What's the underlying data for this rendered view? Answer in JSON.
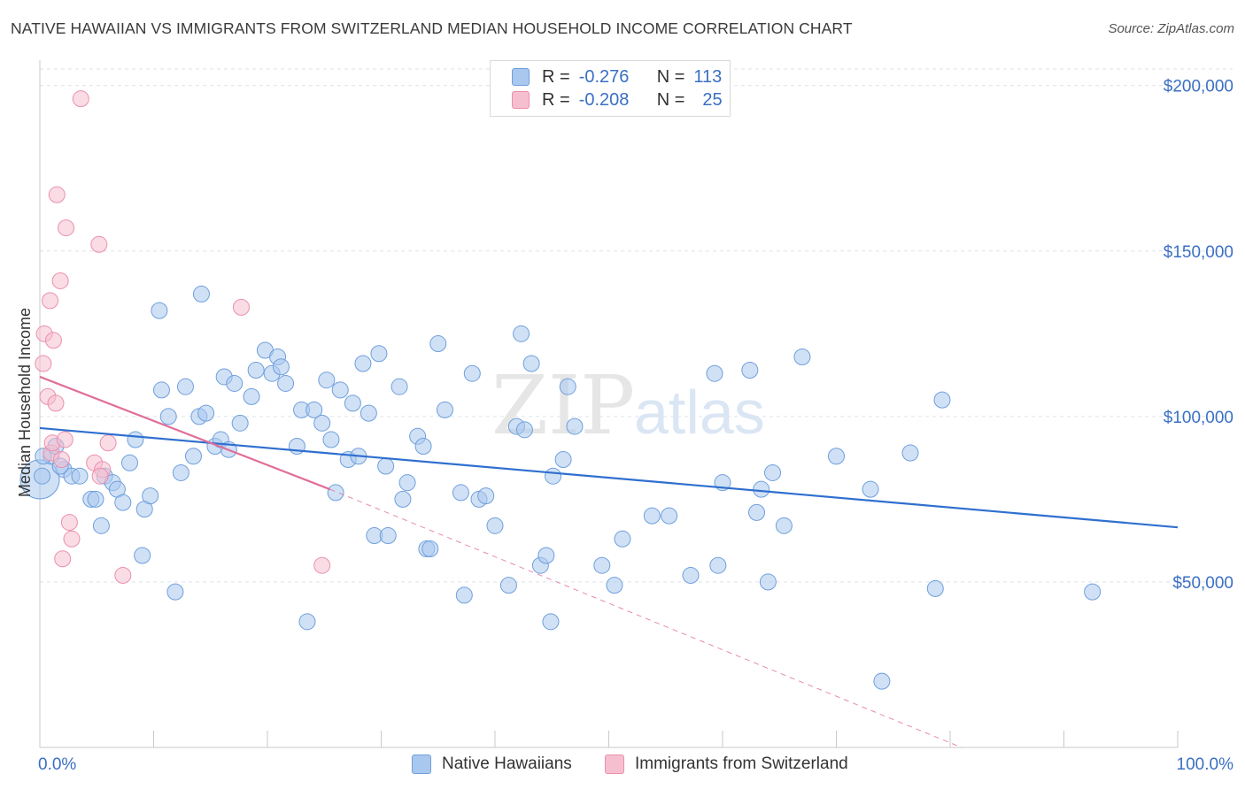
{
  "title": "NATIVE HAWAIIAN VS IMMIGRANTS FROM SWITZERLAND MEDIAN HOUSEHOLD INCOME CORRELATION CHART",
  "source": "Source: ZipAtlas.com",
  "watermark": {
    "part1": "ZIP",
    "part2": "atlas"
  },
  "stats_legend": {
    "rows": [
      {
        "r_label": "R =",
        "r_value": "-0.276",
        "n_label": "N =",
        "n_value": "113"
      },
      {
        "r_label": "R =",
        "r_value": "-0.208",
        "n_label": "N =",
        "n_value": "25"
      }
    ]
  },
  "bottom_legend": [
    {
      "label": "Native Hawaiians"
    },
    {
      "label": "Immigrants from Switzerland"
    }
  ],
  "colors": {
    "blue_fill": "#a9c8ef",
    "blue_stroke": "#6f9fdc",
    "blue_line": "#2f6fcf",
    "pink_fill": "#f6bfd0",
    "pink_stroke": "#eb8fad",
    "pink_line": "#e06f9a",
    "axis_text": "#3a6fc4",
    "grid": "#dde2ea"
  },
  "chart_data": {
    "type": "scatter",
    "xlabel": "",
    "ylabel": "Median Household Income",
    "x_tick_labels": [
      "0.0%",
      "100.0%"
    ],
    "y_tick_labels": [
      "$50,000",
      "$100,000",
      "$150,000",
      "$200,000"
    ],
    "xlim": [
      0,
      100
    ],
    "ylim": [
      0,
      205000
    ],
    "y_ticks": [
      50000,
      100000,
      150000,
      200000
    ],
    "x_minor_ticks": [
      0,
      10,
      20,
      30,
      40,
      50,
      60,
      70,
      80,
      90,
      100
    ],
    "grid": "horizontal dashed",
    "series": [
      {
        "name": "Native Hawaiians",
        "color": "blue",
        "points": [
          [
            0.2,
            82000
          ],
          [
            1.0,
            88000
          ],
          [
            1.4,
            91000
          ],
          [
            2.1,
            84000
          ],
          [
            2.8,
            82000
          ],
          [
            3.5,
            82000
          ],
          [
            4.5,
            75000
          ],
          [
            4.9,
            75000
          ],
          [
            5.4,
            67000
          ],
          [
            5.7,
            82000
          ],
          [
            6.4,
            80000
          ],
          [
            6.8,
            78000
          ],
          [
            7.3,
            74000
          ],
          [
            7.9,
            86000
          ],
          [
            8.4,
            93000
          ],
          [
            9.0,
            58000
          ],
          [
            9.2,
            72000
          ],
          [
            9.7,
            76000
          ],
          [
            10.5,
            132000
          ],
          [
            10.7,
            108000
          ],
          [
            11.3,
            100000
          ],
          [
            11.9,
            47000
          ],
          [
            12.4,
            83000
          ],
          [
            12.8,
            109000
          ],
          [
            13.5,
            88000
          ],
          [
            14.0,
            100000
          ],
          [
            14.6,
            101000
          ],
          [
            14.2,
            137000
          ],
          [
            15.4,
            91000
          ],
          [
            15.9,
            93000
          ],
          [
            16.2,
            112000
          ],
          [
            16.6,
            90000
          ],
          [
            17.1,
            110000
          ],
          [
            17.6,
            98000
          ],
          [
            18.6,
            106000
          ],
          [
            19.0,
            114000
          ],
          [
            19.8,
            120000
          ],
          [
            20.4,
            113000
          ],
          [
            20.9,
            118000
          ],
          [
            21.2,
            115000
          ],
          [
            21.6,
            110000
          ],
          [
            22.6,
            91000
          ],
          [
            23.0,
            102000
          ],
          [
            23.5,
            38000
          ],
          [
            24.1,
            102000
          ],
          [
            24.8,
            98000
          ],
          [
            25.2,
            111000
          ],
          [
            25.6,
            93000
          ],
          [
            26.0,
            77000
          ],
          [
            26.4,
            108000
          ],
          [
            27.1,
            87000
          ],
          [
            27.5,
            104000
          ],
          [
            28.0,
            88000
          ],
          [
            28.4,
            116000
          ],
          [
            28.9,
            101000
          ],
          [
            29.4,
            64000
          ],
          [
            29.8,
            119000
          ],
          [
            30.4,
            85000
          ],
          [
            30.6,
            64000
          ],
          [
            31.6,
            109000
          ],
          [
            31.9,
            75000
          ],
          [
            32.3,
            80000
          ],
          [
            33.2,
            94000
          ],
          [
            33.7,
            91000
          ],
          [
            34.0,
            60000
          ],
          [
            34.3,
            60000
          ],
          [
            35.0,
            122000
          ],
          [
            35.6,
            102000
          ],
          [
            37.0,
            77000
          ],
          [
            37.3,
            46000
          ],
          [
            38.0,
            113000
          ],
          [
            38.6,
            75000
          ],
          [
            39.2,
            76000
          ],
          [
            40.0,
            67000
          ],
          [
            41.2,
            49000
          ],
          [
            41.9,
            97000
          ],
          [
            42.3,
            125000
          ],
          [
            42.6,
            96000
          ],
          [
            43.2,
            116000
          ],
          [
            44.0,
            55000
          ],
          [
            44.5,
            58000
          ],
          [
            44.9,
            38000
          ],
          [
            45.1,
            82000
          ],
          [
            46.0,
            87000
          ],
          [
            46.4,
            109000
          ],
          [
            47.0,
            97000
          ],
          [
            49.4,
            55000
          ],
          [
            50.5,
            49000
          ],
          [
            51.2,
            63000
          ],
          [
            53.8,
            70000
          ],
          [
            55.3,
            70000
          ],
          [
            57.2,
            52000
          ],
          [
            59.3,
            113000
          ],
          [
            59.6,
            55000
          ],
          [
            60.0,
            80000
          ],
          [
            62.4,
            114000
          ],
          [
            63.0,
            71000
          ],
          [
            63.4,
            78000
          ],
          [
            64.0,
            50000
          ],
          [
            64.4,
            83000
          ],
          [
            65.4,
            67000
          ],
          [
            67.0,
            118000
          ],
          [
            70.0,
            88000
          ],
          [
            73.0,
            78000
          ],
          [
            74.0,
            20000
          ],
          [
            76.5,
            89000
          ],
          [
            78.7,
            48000
          ],
          [
            79.3,
            105000
          ],
          [
            92.5,
            47000
          ],
          [
            0.3,
            88000
          ],
          [
            1.8,
            85000
          ]
        ]
      },
      {
        "name": "Immigrants from Switzerland",
        "color": "pink",
        "points": [
          [
            0.3,
            116000
          ],
          [
            0.4,
            125000
          ],
          [
            0.7,
            106000
          ],
          [
            0.9,
            135000
          ],
          [
            1.0,
            89000
          ],
          [
            1.1,
            92000
          ],
          [
            1.2,
            123000
          ],
          [
            1.4,
            104000
          ],
          [
            1.5,
            167000
          ],
          [
            1.8,
            141000
          ],
          [
            2.0,
            57000
          ],
          [
            2.3,
            157000
          ],
          [
            2.6,
            68000
          ],
          [
            2.8,
            63000
          ],
          [
            3.6,
            196000
          ],
          [
            4.8,
            86000
          ],
          [
            5.2,
            152000
          ],
          [
            5.5,
            84000
          ],
          [
            6.0,
            92000
          ],
          [
            7.3,
            52000
          ],
          [
            17.7,
            133000
          ],
          [
            24.8,
            55000
          ],
          [
            1.9,
            87000
          ],
          [
            2.2,
            93000
          ],
          [
            5.3,
            82000
          ]
        ]
      }
    ],
    "trendlines": [
      {
        "series": "Native Hawaiians",
        "x": [
          0,
          100
        ],
        "y": [
          96500,
          66500
        ],
        "style": "solid"
      },
      {
        "series": "Immigrants from Switzerland",
        "x": [
          0,
          25.5
        ],
        "y": [
          112000,
          78000
        ],
        "style": "solid"
      },
      {
        "series": "Immigrants from Switzerland",
        "x": [
          25.5,
          81
        ],
        "y": [
          78000,
          0
        ],
        "style": "dashed"
      }
    ]
  }
}
